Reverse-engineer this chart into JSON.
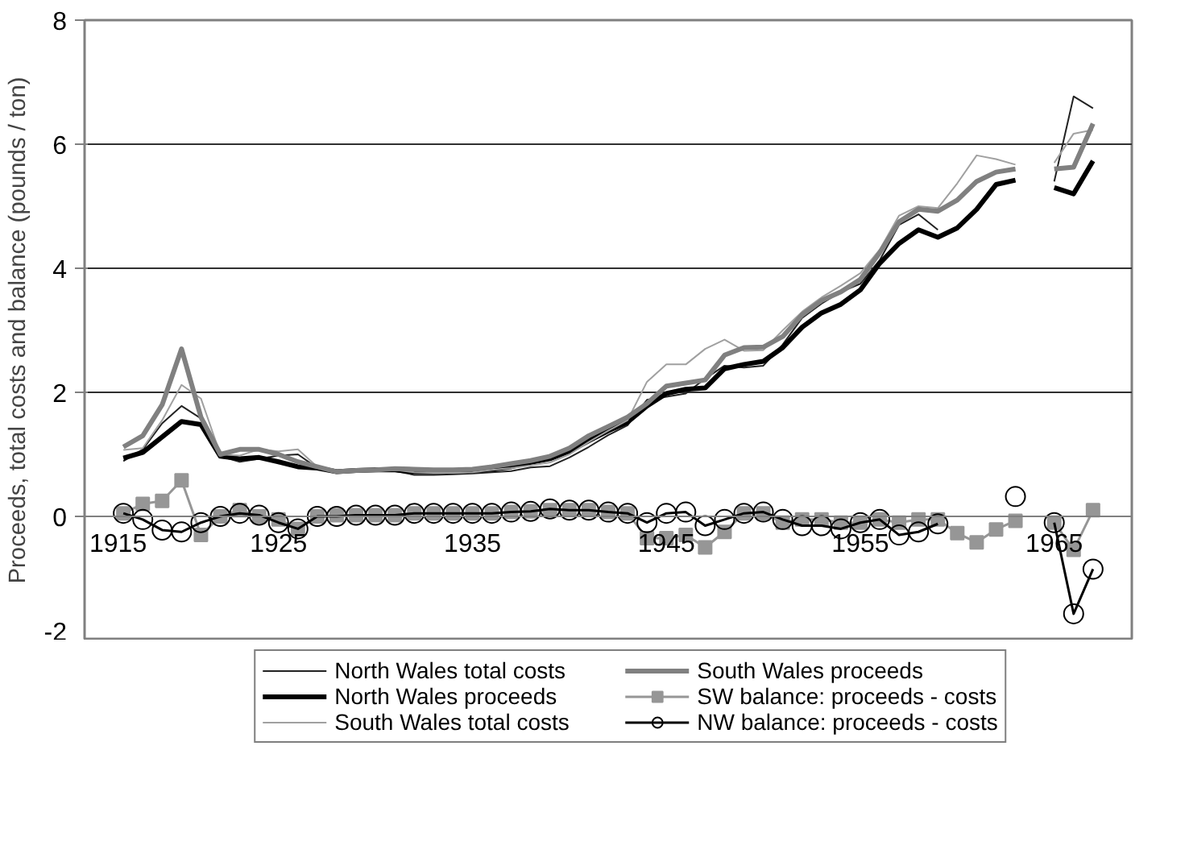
{
  "chart_data": {
    "type": "line",
    "ylabel": "Proceeds, total costs and balance (pounds / ton)",
    "x": [
      1917,
      1918,
      1919,
      1920,
      1921,
      1922,
      1923,
      1924,
      1925,
      1926,
      1927,
      1928,
      1929,
      1930,
      1931,
      1932,
      1933,
      1934,
      1935,
      1936,
      1937,
      1938,
      1939,
      1940,
      1941,
      1942,
      1943,
      1944,
      1945,
      1946,
      1947,
      1948,
      1949,
      1950,
      1951,
      1952,
      1953,
      1954,
      1955,
      1956,
      1957,
      1958,
      1959,
      1960,
      1961,
      1962,
      1963,
      1964,
      1965,
      1966,
      1967
    ],
    "series": [
      {
        "name": "North Wales total costs",
        "color": "#222222",
        "marker": "none",
        "values": [
          0.89,
          1.08,
          1.5,
          1.78,
          1.58,
          0.97,
          0.88,
          0.93,
          0.98,
          1.0,
          0.78,
          0.72,
          0.72,
          0.73,
          0.73,
          0.67,
          0.67,
          0.68,
          0.69,
          0.71,
          0.73,
          0.79,
          0.81,
          0.95,
          1.12,
          1.31,
          1.47,
          1.88,
          1.93,
          1.98,
          2.22,
          2.43,
          2.4,
          2.43,
          2.77,
          3.2,
          3.43,
          3.62,
          3.75,
          4.13,
          4.7,
          4.87,
          4.62,
          null,
          null,
          null,
          null,
          null,
          5.4,
          6.77,
          6.58
        ]
      },
      {
        "name": "North Wales proceeds",
        "color": "#000000",
        "marker": "none",
        "values": [
          0.94,
          1.03,
          1.28,
          1.53,
          1.48,
          0.97,
          0.93,
          0.95,
          0.88,
          0.8,
          0.78,
          0.72,
          0.74,
          0.75,
          0.75,
          0.72,
          0.72,
          0.73,
          0.74,
          0.76,
          0.8,
          0.87,
          0.93,
          1.05,
          1.22,
          1.38,
          1.52,
          1.78,
          1.98,
          2.05,
          2.07,
          2.38,
          2.45,
          2.5,
          2.72,
          3.05,
          3.28,
          3.42,
          3.65,
          4.08,
          4.4,
          4.62,
          4.5,
          4.65,
          4.95,
          5.35,
          5.42,
          null,
          5.3,
          5.2,
          5.73
        ]
      },
      {
        "name": "South Wales total costs",
        "color": "#a0a0a0",
        "marker": "none",
        "values": [
          1.07,
          1.1,
          1.55,
          2.12,
          1.9,
          1.0,
          0.98,
          1.08,
          1.05,
          1.08,
          0.8,
          0.7,
          0.72,
          0.73,
          0.75,
          0.71,
          0.7,
          0.7,
          0.71,
          0.75,
          0.78,
          0.82,
          0.87,
          1.0,
          1.2,
          1.38,
          1.55,
          2.17,
          2.45,
          2.45,
          2.7,
          2.85,
          2.67,
          2.68,
          3.0,
          3.3,
          3.53,
          3.72,
          3.92,
          4.3,
          4.85,
          5.0,
          4.97,
          5.37,
          5.82,
          5.76,
          5.67,
          null,
          5.7,
          6.17,
          6.23
        ]
      },
      {
        "name": "South Wales proceeds",
        "color": "#808080",
        "marker": "none",
        "values": [
          1.12,
          1.3,
          1.8,
          2.7,
          1.6,
          1.0,
          1.08,
          1.08,
          1.0,
          0.88,
          0.8,
          0.72,
          0.74,
          0.75,
          0.77,
          0.76,
          0.75,
          0.75,
          0.76,
          0.8,
          0.85,
          0.9,
          0.97,
          1.1,
          1.3,
          1.45,
          1.6,
          1.82,
          2.1,
          2.15,
          2.2,
          2.6,
          2.72,
          2.73,
          2.9,
          3.25,
          3.48,
          3.62,
          3.82,
          4.25,
          4.75,
          4.95,
          4.92,
          5.1,
          5.4,
          5.55,
          5.6,
          null,
          5.6,
          5.63,
          6.33
        ]
      },
      {
        "name": "SW balance: proceeds - costs",
        "color": "#969696",
        "marker": "square",
        "values": [
          0.05,
          0.2,
          0.25,
          0.58,
          -0.3,
          0.0,
          0.1,
          0.0,
          -0.05,
          -0.2,
          0.0,
          0.02,
          0.02,
          0.02,
          0.02,
          0.05,
          0.05,
          0.05,
          0.05,
          0.05,
          0.07,
          0.08,
          0.1,
          0.1,
          0.1,
          0.07,
          0.05,
          -0.35,
          -0.35,
          -0.3,
          -0.5,
          -0.25,
          0.05,
          0.05,
          -0.1,
          -0.05,
          -0.05,
          -0.1,
          -0.1,
          -0.05,
          -0.1,
          -0.05,
          -0.05,
          -0.27,
          -0.42,
          -0.21,
          -0.07,
          null,
          -0.1,
          -0.54,
          0.1
        ]
      },
      {
        "name": "NW balance: proceeds - costs",
        "color": "#000000",
        "marker": "circle",
        "values": [
          0.05,
          -0.05,
          -0.22,
          -0.25,
          -0.1,
          0.0,
          0.05,
          0.02,
          -0.1,
          -0.2,
          0.0,
          0.0,
          0.02,
          0.02,
          0.02,
          0.05,
          0.05,
          0.05,
          0.05,
          0.05,
          0.07,
          0.08,
          0.12,
          0.1,
          0.1,
          0.07,
          0.05,
          -0.1,
          0.05,
          0.07,
          -0.15,
          -0.05,
          0.05,
          0.07,
          -0.05,
          -0.15,
          -0.15,
          -0.2,
          -0.1,
          -0.05,
          -0.3,
          -0.25,
          -0.12,
          null,
          null,
          null,
          0.32,
          null,
          -0.1,
          -1.57,
          -0.85
        ]
      }
    ],
    "xlim": [
      1915,
      1969
    ],
    "xticks": [
      1915,
      1925,
      1935,
      1945,
      1955,
      1965
    ],
    "ylim": [
      -2,
      8
    ],
    "yticks": [
      -2,
      0,
      2,
      4,
      6,
      8
    ],
    "grid": "y",
    "legend": "bottom",
    "line_style": "solid"
  }
}
